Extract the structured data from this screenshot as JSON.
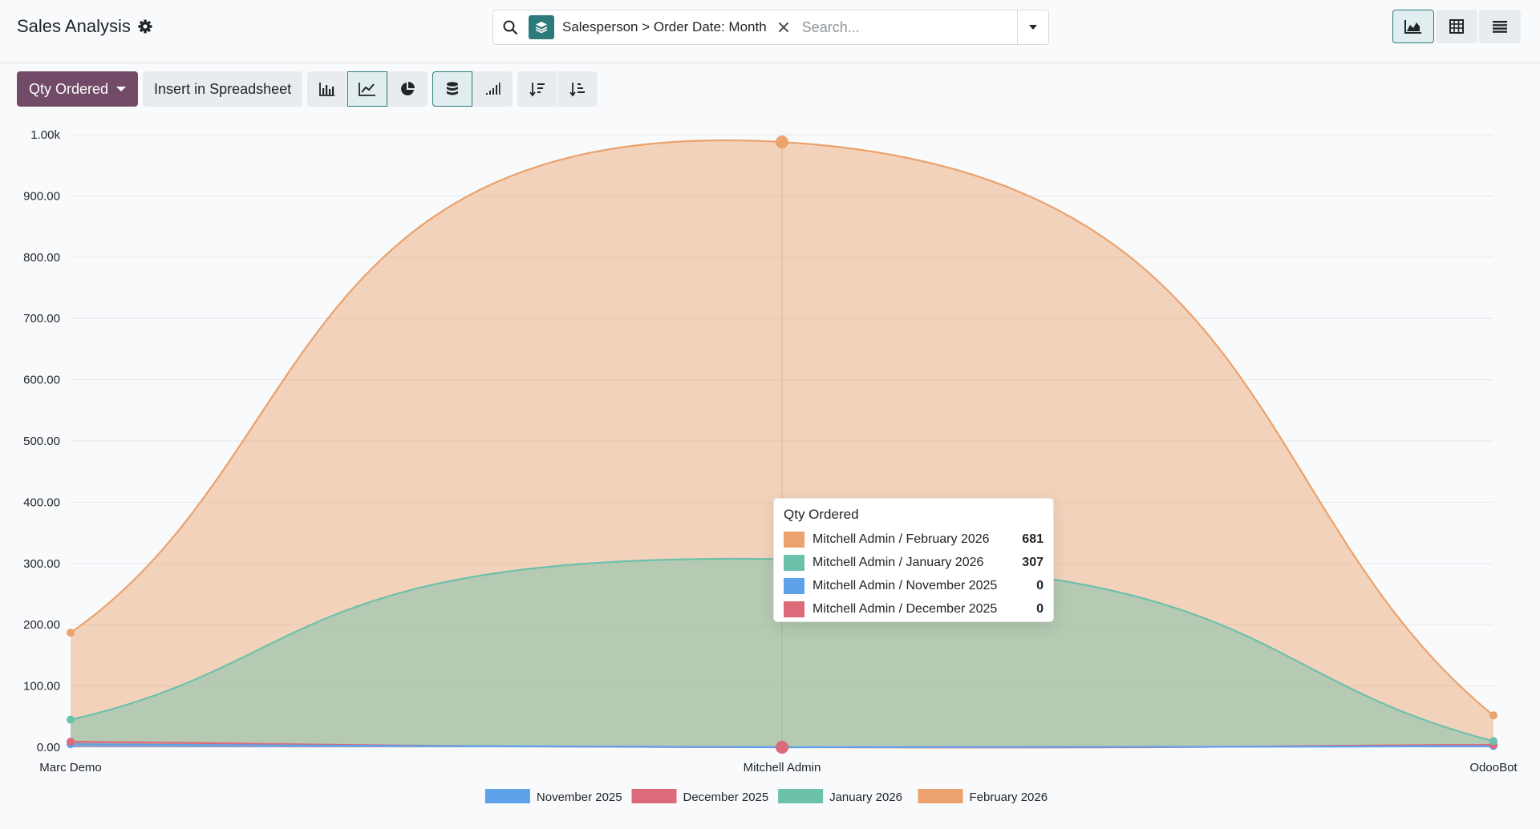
{
  "header": {
    "title": "Sales Analysis",
    "facet": "Salesperson > Order Date: Month",
    "search_placeholder": "Search..."
  },
  "toolbar": {
    "measure_label": "Qty Ordered",
    "spreadsheet_label": "Insert in Spreadsheet"
  },
  "tooltip": {
    "title": "Qty Ordered",
    "rows": [
      {
        "label": "Mitchell Admin / February 2026",
        "value": "681",
        "color": "#eba26c"
      },
      {
        "label": "Mitchell Admin / January 2026",
        "value": "307",
        "color": "#6cc1ab"
      },
      {
        "label": "Mitchell Admin / November 2025",
        "value": "0",
        "color": "#5ea2ec"
      },
      {
        "label": "Mitchell Admin / December 2025",
        "value": "0",
        "color": "#dc6a78"
      }
    ]
  },
  "chart_data": {
    "type": "area",
    "stacked": true,
    "categories": [
      "Marc Demo",
      "Mitchell Admin",
      "OdooBot"
    ],
    "ylim": [
      0,
      1000
    ],
    "yticks": [
      "0.00",
      "100.00",
      "200.00",
      "300.00",
      "400.00",
      "500.00",
      "600.00",
      "700.00",
      "800.00",
      "900.00",
      "1.00k"
    ],
    "grid": true,
    "legend_position": "bottom",
    "series": [
      {
        "name": "November 2025",
        "color": "#5ea2ec",
        "values": [
          5,
          0,
          2
        ]
      },
      {
        "name": "December 2025",
        "color": "#dc6a78",
        "values": [
          4,
          0,
          2
        ]
      },
      {
        "name": "January 2026",
        "color": "#6cc1ab",
        "values": [
          36,
          307,
          6
        ]
      },
      {
        "name": "February 2026",
        "color": "#eba26c",
        "values": [
          142,
          681,
          42
        ]
      }
    ],
    "highlight_category": "Mitchell Admin"
  }
}
